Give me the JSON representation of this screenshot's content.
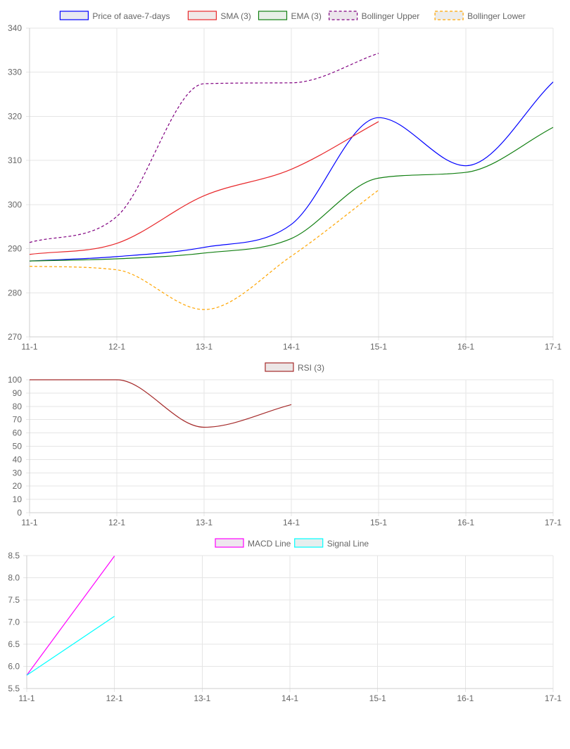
{
  "chart_data": [
    {
      "type": "line",
      "categories": [
        "11-1",
        "12-1",
        "13-1",
        "14-1",
        "15-1",
        "16-1",
        "17-1"
      ],
      "ylim": [
        270,
        340
      ],
      "yticks": [
        270,
        280,
        290,
        300,
        310,
        320,
        330,
        340
      ],
      "grid": true,
      "legend_placement": "top-center",
      "series": [
        {
          "name": "Price of aave-7-days",
          "color": "#0000ff",
          "fill": "#e8e8f0",
          "dashed": false,
          "values": [
            287.2,
            288.2,
            290.3,
            295.5,
            319.7,
            308.8,
            327.8
          ]
        },
        {
          "name": "SMA (3)",
          "color": "#e8282b",
          "fill": "#f0e8e8",
          "dashed": false,
          "values": [
            288.7,
            291.2,
            302.0,
            308.0,
            318.8,
            null,
            null
          ]
        },
        {
          "name": "EMA (3)",
          "color": "#117f11",
          "fill": "#e8efe8",
          "dashed": false,
          "values": [
            287.2,
            287.7,
            289.0,
            292.3,
            306.0,
            307.3,
            317.5
          ]
        },
        {
          "name": "Bollinger Upper",
          "color": "#800080",
          "fill": "#ece6ec",
          "dashed": true,
          "values": [
            291.4,
            297.3,
            327.4,
            327.6,
            334.3,
            null,
            null
          ]
        },
        {
          "name": "Bollinger Lower",
          "color": "#ffa500",
          "fill": "#ececec",
          "dashed": true,
          "values": [
            286.0,
            285.2,
            276.2,
            288.3,
            303.3,
            null,
            null
          ]
        }
      ]
    },
    {
      "type": "line",
      "categories": [
        "11-1",
        "12-1",
        "13-1",
        "14-1",
        "15-1",
        "16-1",
        "17-1"
      ],
      "ylim": [
        0,
        100
      ],
      "yticks": [
        0,
        10,
        20,
        30,
        40,
        50,
        60,
        70,
        80,
        90,
        100
      ],
      "grid": true,
      "legend_placement": "top-center",
      "series": [
        {
          "name": "RSI (3)",
          "color": "#a52a2a",
          "fill": "#ece6e6",
          "dashed": false,
          "values": [
            100,
            100,
            64.3,
            81.3,
            null,
            null,
            null
          ]
        }
      ]
    },
    {
      "type": "line",
      "categories": [
        "11-1",
        "12-1",
        "13-1",
        "14-1",
        "15-1",
        "16-1",
        "17-1"
      ],
      "ylim": [
        5.5,
        8.5
      ],
      "yticks": [
        5.5,
        6.0,
        6.5,
        7.0,
        7.5,
        8.0,
        8.5
      ],
      "grid": true,
      "legend_placement": "top-center",
      "series": [
        {
          "name": "MACD Line",
          "color": "#ff00ff",
          "fill": "#eee6ee",
          "dashed": false,
          "values": [
            5.8,
            8.49,
            null,
            null,
            null,
            null,
            null
          ]
        },
        {
          "name": "Signal Line",
          "color": "#00ffff",
          "fill": "#e6eeee",
          "dashed": false,
          "values": [
            5.8,
            7.13,
            null,
            null,
            null,
            null,
            null
          ]
        }
      ]
    }
  ]
}
